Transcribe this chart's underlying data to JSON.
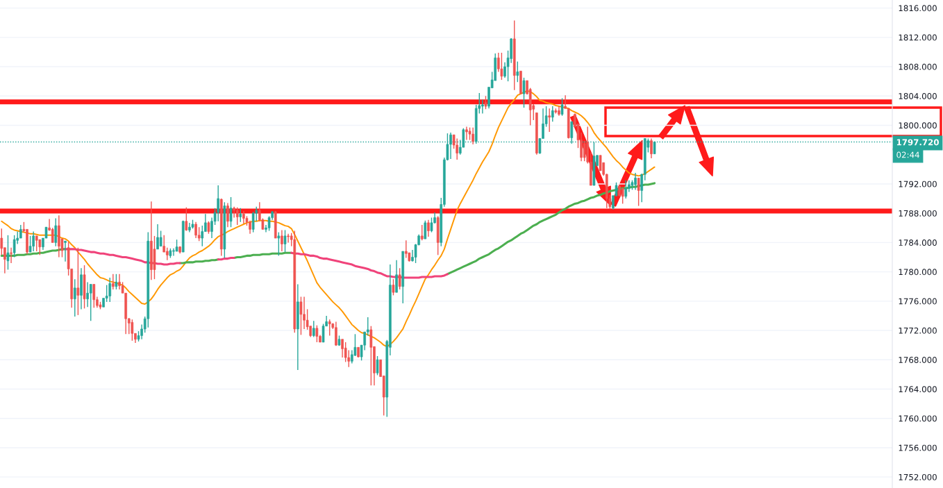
{
  "chart_data": {
    "type": "candlestick",
    "categories": [
      null,
      null,
      null,
      null,
      null,
      null,
      null,
      null,
      null,
      null,
      null,
      null,
      null,
      null,
      null,
      null,
      null,
      null,
      null,
      null,
      null,
      null,
      null,
      null,
      null,
      null,
      null,
      null,
      null,
      null,
      null,
      null,
      null,
      null,
      null,
      null,
      null,
      null,
      null,
      null,
      null,
      null,
      null,
      null,
      null,
      null,
      null,
      null,
      null,
      null,
      null,
      null,
      null,
      null,
      null,
      null,
      null,
      null,
      null,
      null,
      null,
      null,
      null,
      null,
      null,
      null,
      null,
      null,
      null,
      null,
      null,
      null,
      null,
      null,
      null,
      null,
      null,
      null,
      null,
      null,
      null,
      null,
      null,
      null,
      null,
      null,
      null,
      null,
      null,
      null,
      null,
      null,
      null,
      null,
      null,
      null,
      null,
      null,
      null,
      null,
      null,
      null,
      null,
      null,
      null,
      null,
      null,
      null,
      null,
      null,
      null,
      null,
      null,
      null,
      null,
      null,
      null,
      null,
      null,
      null,
      null,
      null,
      null,
      null,
      null,
      null,
      null,
      null,
      null,
      null,
      null,
      null,
      null,
      null,
      null,
      null,
      null,
      null,
      null,
      null,
      null,
      null,
      null,
      null,
      null,
      null,
      null,
      null,
      null,
      null,
      null,
      null,
      null,
      null,
      null,
      null,
      null,
      null,
      null,
      null,
      null,
      null,
      null,
      null,
      null,
      null,
      null,
      null,
      null,
      null,
      null,
      null,
      null,
      null,
      null,
      null,
      null,
      null,
      null,
      null,
      null,
      null,
      null,
      null,
      null,
      null,
      null,
      null,
      null,
      null,
      null,
      null,
      null,
      null,
      null,
      null,
      null,
      null,
      null,
      null,
      null,
      null,
      null,
      null,
      null,
      null
    ],
    "ohlc": [
      [
        1784.6,
        1785.9,
        1782.3,
        1783.2
      ],
      [
        1783.3,
        1783.3,
        1779.8,
        1781.7
      ],
      [
        1781.5,
        1785.0,
        1780.3,
        1782.6
      ],
      [
        1782.6,
        1783.3,
        1781.2,
        1782.5
      ],
      [
        1782.6,
        1785.0,
        1782.0,
        1784.4
      ],
      [
        1784.3,
        1785.5,
        1783.8,
        1784.6
      ],
      [
        1784.6,
        1786.4,
        1784.6,
        1785.8
      ],
      [
        1785.8,
        1786.8,
        1785.4,
        1785.6
      ],
      [
        1785.8,
        1785.8,
        1782.4,
        1782.7
      ],
      [
        1782.7,
        1784.9,
        1782.7,
        1783.5
      ],
      [
        1783.5,
        1785.5,
        1782.8,
        1784.9
      ],
      [
        1784.9,
        1784.9,
        1782.8,
        1784.3
      ],
      [
        1784.4,
        1784.4,
        1782.3,
        1783.4
      ],
      [
        1783.4,
        1784.6,
        1783.0,
        1784.6
      ],
      [
        1784.6,
        1786.1,
        1784.6,
        1786.1
      ],
      [
        1786.0,
        1787.2,
        1785.6,
        1785.7
      ],
      [
        1785.8,
        1786.0,
        1784.0,
        1784.0
      ],
      [
        1784.0,
        1787.3,
        1783.5,
        1786.3
      ],
      [
        1786.3,
        1787.7,
        1782.0,
        1783.5
      ],
      [
        1784.5,
        1784.5,
        1782.0,
        1782.9
      ],
      [
        1784.0,
        1784.2,
        1781.4,
        1784.2
      ],
      [
        1783.3,
        1784.1,
        1779.5,
        1780.4
      ],
      [
        1780.4,
        1780.4,
        1775.1,
        1776.3
      ],
      [
        1776.3,
        1779.0,
        1773.9,
        1777.8
      ],
      [
        1777.8,
        1783.3,
        1774.1,
        1776.8
      ],
      [
        1776.8,
        1780.5,
        1774.9,
        1779.6
      ],
      [
        1779.6,
        1780.9,
        1775.0,
        1776.3
      ],
      [
        1776.3,
        1778.6,
        1775.2,
        1777.1
      ],
      [
        1777.1,
        1778.3,
        1773.3,
        1778.3
      ],
      [
        1778.3,
        1778.3,
        1775.1,
        1776.2
      ],
      [
        1776.2,
        1776.6,
        1775.1,
        1775.4
      ],
      [
        1775.5,
        1775.9,
        1774.9,
        1775.2
      ],
      [
        1775.2,
        1776.4,
        1775.2,
        1776.4
      ],
      [
        1776.4,
        1778.2,
        1775.9,
        1776.7
      ],
      [
        1776.7,
        1779.2,
        1775.9,
        1778.4
      ],
      [
        1778.4,
        1779.7,
        1777.6,
        1778.0
      ],
      [
        1778.0,
        1779.7,
        1777.6,
        1778.6
      ],
      [
        1778.6,
        1779.7,
        1777.6,
        1778.1
      ],
      [
        1778.1,
        1778.6,
        1777.1,
        1777.1
      ],
      [
        1777.1,
        1777.1,
        1771.5,
        1773.6
      ],
      [
        1773.6,
        1773.7,
        1771.5,
        1773.0
      ],
      [
        1773.1,
        1773.5,
        1770.6,
        1771.6
      ],
      [
        1771.6,
        1771.6,
        1770.3,
        1770.8
      ],
      [
        1770.8,
        1771.9,
        1770.5,
        1771.3
      ],
      [
        1771.3,
        1772.8,
        1770.8,
        1772.2
      ],
      [
        1772.2,
        1773.9,
        1771.7,
        1773.6
      ],
      [
        1773.6,
        1785.4,
        1772.4,
        1784.2
      ],
      [
        1784.2,
        1789.6,
        1778.9,
        1780.3
      ],
      [
        1783.1,
        1784.9,
        1779.0,
        1780.3
      ],
      [
        1783.1,
        1786.5,
        1783.1,
        1784.7
      ],
      [
        1783.5,
        1785.6,
        1783.5,
        1784.7
      ],
      [
        1783.5,
        1785.0,
        1782.7,
        1782.7
      ],
      [
        1782.8,
        1783.3,
        1781.6,
        1782.3
      ],
      [
        1782.2,
        1783.2,
        1781.9,
        1782.9
      ],
      [
        1782.8,
        1783.2,
        1782.2,
        1782.9
      ],
      [
        1782.8,
        1784.4,
        1782.8,
        1783.4
      ],
      [
        1783.4,
        1783.5,
        1782.5,
        1782.7
      ],
      [
        1782.7,
        1787.0,
        1782.7,
        1786.9
      ],
      [
        1786.9,
        1788.8,
        1785.6,
        1785.7
      ],
      [
        1785.7,
        1786.7,
        1785.4,
        1786.1
      ],
      [
        1786.1,
        1787.1,
        1785.9,
        1786.5
      ],
      [
        1786.5,
        1786.8,
        1784.6,
        1785.0
      ],
      [
        1785.0,
        1786.1,
        1784.2,
        1784.6
      ],
      [
        1784.6,
        1786.3,
        1783.5,
        1785.5
      ],
      [
        1785.5,
        1787.9,
        1785.5,
        1786.7
      ],
      [
        1786.7,
        1786.9,
        1785.2,
        1785.5
      ],
      [
        1785.5,
        1787.4,
        1784.6,
        1786.9
      ],
      [
        1786.9,
        1788.7,
        1786.4,
        1788.1
      ],
      [
        1788.1,
        1791.8,
        1786.9,
        1790.0
      ],
      [
        1789.9,
        1790.0,
        1782.2,
        1783.1
      ],
      [
        1783.1,
        1789.5,
        1781.9,
        1789.0
      ],
      [
        1789.0,
        1789.4,
        1786.1,
        1786.9
      ],
      [
        1786.9,
        1790.2,
        1786.1,
        1788.7
      ],
      [
        1788.7,
        1788.9,
        1787.4,
        1788.4
      ],
      [
        1788.4,
        1788.8,
        1786.4,
        1787.5
      ],
      [
        1787.5,
        1788.7,
        1786.8,
        1787.9
      ],
      [
        1787.9,
        1788.3,
        1786.6,
        1787.3
      ],
      [
        1787.3,
        1787.6,
        1786.3,
        1786.8
      ],
      [
        1786.8,
        1787.0,
        1785.2,
        1785.8
      ],
      [
        1785.8,
        1788.2,
        1785.4,
        1788.0
      ],
      [
        1788.0,
        1788.9,
        1786.9,
        1788.4
      ],
      [
        1788.4,
        1789.5,
        1786.9,
        1787.1
      ],
      [
        1787.1,
        1787.3,
        1785.8,
        1785.8
      ],
      [
        1785.8,
        1786.4,
        1785.4,
        1786.0
      ],
      [
        1786.0,
        1787.6,
        1785.6,
        1787.4
      ],
      [
        1787.4,
        1788.3,
        1787.1,
        1788.2
      ],
      [
        1788.2,
        1788.3,
        1784.6,
        1784.6
      ],
      [
        1784.6,
        1785.4,
        1782.2,
        1784.9
      ],
      [
        1784.9,
        1785.7,
        1782.8,
        1783.8
      ],
      [
        1783.8,
        1785.7,
        1782.7,
        1784.9
      ],
      [
        1784.9,
        1785.2,
        1784.0,
        1784.8
      ],
      [
        1784.9,
        1785.3,
        1783.5,
        1784.4
      ],
      [
        1784.4,
        1785.6,
        1771.7,
        1772.2
      ],
      [
        1772.2,
        1778.3,
        1766.6,
        1775.9
      ],
      [
        1775.9,
        1776.6,
        1771.4,
        1774.2
      ],
      [
        1774.2,
        1776.6,
        1772.2,
        1773.4
      ],
      [
        1773.4,
        1774.9,
        1772.1,
        1772.5
      ],
      [
        1772.6,
        1772.6,
        1771.1,
        1771.3
      ],
      [
        1771.3,
        1773.3,
        1771.1,
        1772.3
      ],
      [
        1772.3,
        1772.7,
        1770.4,
        1771.2
      ],
      [
        1771.2,
        1771.4,
        1770.4,
        1770.4
      ],
      [
        1770.4,
        1772.9,
        1770.4,
        1772.6
      ],
      [
        1772.6,
        1774.0,
        1772.6,
        1773.2
      ],
      [
        1773.2,
        1773.5,
        1771.3,
        1772.9
      ],
      [
        1772.9,
        1773.0,
        1772.2,
        1772.4
      ],
      [
        1772.4,
        1773.2,
        1769.9,
        1770.0
      ],
      [
        1770.0,
        1771.3,
        1769.9,
        1770.8
      ],
      [
        1770.8,
        1770.8,
        1768.3,
        1769.5
      ],
      [
        1769.6,
        1770.4,
        1767.7,
        1768.3
      ],
      [
        1768.3,
        1769.3,
        1767.0,
        1767.8
      ],
      [
        1767.8,
        1769.3,
        1767.5,
        1768.7
      ],
      [
        1768.6,
        1771.5,
        1768.5,
        1769.7
      ],
      [
        1769.7,
        1769.7,
        1768.3,
        1768.4
      ],
      [
        1768.4,
        1770.0,
        1767.9,
        1770.0
      ],
      [
        1770.0,
        1771.8,
        1769.3,
        1771.8
      ],
      [
        1771.8,
        1773.8,
        1771.3,
        1772.1
      ],
      [
        1772.1,
        1772.6,
        1764.5,
        1769.7
      ],
      [
        1769.8,
        1769.8,
        1764.5,
        1766.2
      ],
      [
        1766.2,
        1768.5,
        1765.9,
        1768.0
      ],
      [
        1768.0,
        1768.0,
        1765.7,
        1765.7
      ],
      [
        1765.8,
        1765.8,
        1760.4,
        1762.9
      ],
      [
        1762.9,
        1770.7,
        1760.2,
        1770.5
      ],
      [
        1769.7,
        1781.0,
        1768.6,
        1778.2
      ],
      [
        1778.2,
        1779.0,
        1776.8,
        1777.2
      ],
      [
        1777.2,
        1781.6,
        1777.2,
        1779.6
      ],
      [
        1779.6,
        1780.5,
        1777.6,
        1778.0
      ],
      [
        1778.0,
        1782.8,
        1775.7,
        1782.8
      ],
      [
        1782.8,
        1784.3,
        1781.9,
        1782.5
      ],
      [
        1782.6,
        1782.6,
        1781.4,
        1781.5
      ],
      [
        1781.5,
        1783.0,
        1781.4,
        1782.0
      ],
      [
        1782.0,
        1783.8,
        1781.2,
        1783.7
      ],
      [
        1783.7,
        1785.1,
        1783.6,
        1784.9
      ],
      [
        1784.9,
        1786.4,
        1784.3,
        1784.5
      ],
      [
        1784.5,
        1787.0,
        1784.5,
        1786.7
      ],
      [
        1786.7,
        1787.1,
        1784.8,
        1785.6
      ],
      [
        1785.6,
        1787.4,
        1785.4,
        1786.7
      ],
      [
        1786.7,
        1788.1,
        1786.6,
        1787.4
      ],
      [
        1787.4,
        1787.6,
        1782.3,
        1784.0
      ],
      [
        1784.0,
        1790.1,
        1783.5,
        1789.2
      ],
      [
        1789.2,
        1795.6,
        1788.9,
        1795.3
      ],
      [
        1795.3,
        1798.9,
        1795.2,
        1797.4
      ],
      [
        1797.4,
        1799.0,
        1795.4,
        1798.7
      ],
      [
        1798.7,
        1798.7,
        1796.8,
        1797.3
      ],
      [
        1797.3,
        1798.2,
        1795.3,
        1796.2
      ],
      [
        1796.2,
        1798.0,
        1796.0,
        1797.0
      ],
      [
        1797.0,
        1799.6,
        1797.0,
        1799.4
      ],
      [
        1799.4,
        1799.8,
        1798.0,
        1799.1
      ],
      [
        1799.2,
        1799.7,
        1798.0,
        1798.8
      ],
      [
        1798.8,
        1799.7,
        1797.4,
        1797.8
      ],
      [
        1797.8,
        1802.8,
        1797.5,
        1802.3
      ],
      [
        1802.3,
        1804.4,
        1801.6,
        1802.7
      ],
      [
        1802.6,
        1803.5,
        1801.6,
        1802.8
      ],
      [
        1803.1,
        1804.0,
        1802.2,
        1802.6
      ],
      [
        1802.6,
        1805.2,
        1802.3,
        1805.2
      ],
      [
        1805.1,
        1807.3,
        1805.1,
        1806.2
      ],
      [
        1806.1,
        1809.8,
        1806.1,
        1809.2
      ],
      [
        1809.2,
        1809.9,
        1807.3,
        1807.7
      ],
      [
        1807.7,
        1809.9,
        1806.2,
        1806.7
      ],
      [
        1806.7,
        1808.6,
        1806.5,
        1808.0
      ],
      [
        1808.0,
        1810.2,
        1806.0,
        1809.2
      ],
      [
        1809.1,
        1811.9,
        1808.5,
        1811.8
      ],
      [
        1811.8,
        1814.3,
        1804.8,
        1806.8
      ],
      [
        1806.8,
        1808.7,
        1805.9,
        1807.3
      ],
      [
        1807.4,
        1807.4,
        1804.3,
        1804.3
      ],
      [
        1804.3,
        1806.5,
        1802.4,
        1806.1
      ],
      [
        1806.1,
        1806.1,
        1804.2,
        1804.3
      ],
      [
        1804.9,
        1805.1,
        1800.0,
        1802.1
      ],
      [
        1802.7,
        1802.9,
        1800.7,
        1802.2
      ],
      [
        1801.7,
        1801.7,
        1796.0,
        1796.2
      ],
      [
        1796.2,
        1798.2,
        1796.1,
        1798.2
      ],
      [
        1798.2,
        1802.3,
        1798.2,
        1800.2
      ],
      [
        1800.2,
        1802.6,
        1799.8,
        1801.3
      ],
      [
        1801.3,
        1802.3,
        1799.1,
        1801.1
      ],
      [
        1801.1,
        1802.6,
        1800.5,
        1802.0
      ],
      [
        1802.0,
        1802.3,
        1801.6,
        1801.8
      ],
      [
        1802.0,
        1802.6,
        1801.3,
        1801.5
      ],
      [
        1801.5,
        1803.7,
        1801.3,
        1802.8
      ],
      [
        1802.6,
        1804.1,
        1802.3,
        1802.3
      ],
      [
        1802.3,
        1802.3,
        1798.2,
        1798.3
      ],
      [
        1798.3,
        1800.5,
        1797.5,
        1800.5
      ],
      [
        1801.5,
        1801.6,
        1799.8,
        1799.8
      ],
      [
        1800.2,
        1800.2,
        1796.9,
        1798.0
      ],
      [
        1798.0,
        1799.0,
        1795.1,
        1795.6
      ],
      [
        1797.5,
        1797.9,
        1795.1,
        1795.6
      ],
      [
        1797.7,
        1799.8,
        1794.8,
        1795.0
      ],
      [
        1795.0,
        1796.3,
        1791.8,
        1791.8
      ],
      [
        1791.8,
        1797.7,
        1791.8,
        1795.8
      ],
      [
        1794.5,
        1795.9,
        1794.4,
        1795.9
      ],
      [
        1795.9,
        1795.9,
        1793.8,
        1793.8
      ],
      [
        1794.9,
        1794.9,
        1793.1,
        1793.3
      ],
      [
        1793.3,
        1793.4,
        1788.7,
        1790.0
      ],
      [
        1790.0,
        1790.5,
        1788.6,
        1788.9
      ],
      [
        1788.7,
        1790.4,
        1788.5,
        1790.4
      ],
      [
        1790.4,
        1792.2,
        1790.3,
        1791.8
      ],
      [
        1791.7,
        1791.9,
        1790.3,
        1790.4
      ],
      [
        1791.4,
        1791.4,
        1789.3,
        1790.3
      ],
      [
        1790.3,
        1792.5,
        1790.0,
        1791.4
      ],
      [
        1791.4,
        1792.5,
        1790.9,
        1791.9
      ],
      [
        1791.8,
        1792.5,
        1791.2,
        1792.2
      ],
      [
        1791.9,
        1793.5,
        1791.2,
        1792.8
      ],
      [
        1792.8,
        1792.8,
        1789.0,
        1791.1
      ],
      [
        1791.1,
        1793.4,
        1789.5,
        1793.3
      ],
      [
        1793.3,
        1798.2,
        1792.5,
        1798.2
      ],
      [
        1797.0,
        1798.2,
        1796.3,
        1797.9
      ],
      [
        1797.9,
        1798.2,
        1795.5,
        1796.1
      ],
      [
        1796.1,
        1797.8,
        1796.1,
        1797.72
      ]
    ],
    "series": [
      {
        "type": "line",
        "color": "#ff9800",
        "values": [
          1786.9,
          1786.6,
          1786.3,
          1785.9,
          1785.7,
          1785.6,
          1785.5,
          1785.4,
          1785.3,
          1785.2,
          1785.2,
          1785.1,
          1785.0,
          1785.0,
          1785.0,
          1785.0,
          1785.0,
          1785.0,
          1784.8,
          1784.6,
          1784.5,
          1784.2,
          1783.7,
          1783.3,
          1782.7,
          1782.2,
          1781.7,
          1781.1,
          1780.6,
          1780.1,
          1779.6,
          1779.2,
          1779.1,
          1778.9,
          1778.7,
          1778.6,
          1778.5,
          1778.3,
          1778.2,
          1777.8,
          1777.3,
          1776.9,
          1776.5,
          1776.1,
          1775.7,
          1775.6,
          1775.9,
          1776.3,
          1776.9,
          1777.6,
          1778.2,
          1778.7,
          1779.2,
          1779.6,
          1779.8,
          1780.1,
          1780.3,
          1780.8,
          1781.4,
          1781.9,
          1782.2,
          1782.4,
          1782.7,
          1782.9,
          1783.2,
          1783.5,
          1783.9,
          1784.4,
          1784.8,
          1785.0,
          1785.2,
          1785.5,
          1785.7,
          1785.9,
          1786.1,
          1786.3,
          1786.5,
          1786.7,
          1786.8,
          1786.9,
          1786.9,
          1787.0,
          1787.0,
          1787.0,
          1786.9,
          1786.9,
          1786.8,
          1786.7,
          1786.5,
          1786.3,
          1786.2,
          1785.9,
          1785.1,
          1784.2,
          1783.3,
          1782.4,
          1781.5,
          1780.5,
          1779.5,
          1778.5,
          1777.9,
          1777.4,
          1776.9,
          1776.4,
          1775.9,
          1775.5,
          1775.1,
          1774.6,
          1774.0,
          1773.4,
          1772.8,
          1772.4,
          1772.0,
          1771.7,
          1771.6,
          1771.4,
          1771.2,
          1771.0,
          1770.7,
          1770.4,
          1770.0,
          1769.8,
          1770.1,
          1770.5,
          1771.0,
          1771.6,
          1772.2,
          1773.2,
          1774.1,
          1775.1,
          1776.0,
          1777.0,
          1778.0,
          1779.0,
          1779.6,
          1780.3,
          1780.9,
          1781.6,
          1782.2,
          1783.1,
          1784.5,
          1785.8,
          1787.1,
          1788.4,
          1789.3,
          1790.1,
          1790.9,
          1791.7,
          1792.5,
          1793.4,
          1794.2,
          1795.0,
          1795.7,
          1796.4,
          1797.4,
          1798.6,
          1799.7,
          1800.6,
          1801.5,
          1802.4,
          1803.0,
          1803.5,
          1804.1,
          1804.3,
          1804.5,
          1804.7,
          1804.6,
          1804.3,
          1803.9,
          1803.4,
          1803.3,
          1803.1,
          1803.0,
          1802.9,
          1802.7,
          1802.6,
          1802.5,
          1802.4,
          1802.3,
          1802.0,
          1801.8,
          1801.6,
          1801.3,
          1800.9,
          1800.4,
          1799.8,
          1799.0,
          1798.4,
          1797.9,
          1797.4,
          1796.9,
          1796.3,
          1795.7,
          1795.2,
          1794.8,
          1794.3,
          1793.9,
          1793.5,
          1793.3,
          1793.2,
          1793.1,
          1793.2,
          1793.4,
          1793.7,
          1794.0,
          1794.3
        ]
      },
      {
        "type": "line",
        "color": "#4caf50",
        "values": [
          1782.2,
          1782.2,
          1782.2,
          1782.2,
          1782.2,
          1782.3,
          1782.3,
          1782.3,
          1782.4,
          1782.4,
          1782.5,
          1782.5,
          1782.6,
          1782.6,
          1782.7,
          1782.8,
          1782.9,
          1782.9,
          1783.0,
          1783.1,
          1783.1,
          null,
          null,
          null,
          null,
          null,
          null,
          null,
          null,
          null,
          null,
          null,
          null,
          null,
          null,
          null,
          null,
          null,
          null,
          null,
          null,
          null,
          null,
          null,
          null,
          null,
          null,
          null,
          null,
          null,
          null,
          null,
          null,
          null,
          null,
          null,
          1781.2,
          1781.2,
          1781.3,
          1781.3,
          1781.3,
          1781.4,
          1781.4,
          1781.4,
          1781.5,
          1781.5,
          1781.6,
          1781.6,
          1781.7,
          null,
          null,
          null,
          null,
          1781.9,
          1782.0,
          1782.0,
          1782.1,
          1782.2,
          1782.2,
          1782.3,
          1782.3,
          1782.3,
          1782.4,
          1782.4,
          1782.4,
          1782.5,
          1782.5,
          1782.5,
          1782.5,
          1782.6,
          1782.6,
          1782.6,
          null,
          null,
          null,
          null,
          null,
          null,
          null,
          null,
          null,
          null,
          null,
          null,
          null,
          null,
          null,
          null,
          null,
          null,
          null,
          null,
          null,
          null,
          null,
          null,
          null,
          null,
          null,
          null,
          null,
          null,
          null,
          null,
          null,
          null,
          null,
          null,
          null,
          null,
          null,
          null,
          null,
          null,
          null,
          null,
          null,
          null,
          null,
          null,
          1779.7,
          1779.9,
          1780.1,
          1780.3,
          1780.5,
          1780.7,
          1780.9,
          1781.1,
          1781.3,
          1781.5,
          1781.8,
          1782.0,
          1782.2,
          1782.4,
          1782.7,
          1783.0,
          1783.2,
          1783.5,
          1783.8,
          1784.1,
          1784.3,
          1784.6,
          1784.9,
          1785.2,
          1785.4,
          1785.7,
          1786.0,
          1786.3,
          1786.5,
          1786.8,
          1787.0,
          1787.2,
          1787.4,
          1787.6,
          1787.8,
          1788.1,
          1788.4,
          1788.6,
          1788.9,
          1789.1,
          1789.3,
          1789.4,
          1789.6,
          1789.7,
          1789.9,
          1790.1,
          1790.2,
          1790.4,
          1790.5,
          1790.7,
          1790.8,
          1791.0,
          1791.1,
          1791.2,
          1791.3,
          1791.4,
          1791.4,
          1791.5,
          1791.6,
          1791.6,
          1791.7,
          1791.8,
          1791.9,
          1791.9,
          1792.0,
          1792.1
        ]
      },
      {
        "type": "line",
        "color": "#f0437a",
        "values": [
          null,
          null,
          null,
          null,
          null,
          null,
          null,
          null,
          null,
          null,
          null,
          null,
          null,
          null,
          null,
          null,
          null,
          null,
          null,
          null,
          1783.1,
          1783.1,
          1783.1,
          1783.1,
          1783.0,
          1783.0,
          1782.9,
          1782.8,
          1782.7,
          1782.7,
          1782.6,
          1782.5,
          1782.5,
          1782.4,
          1782.3,
          1782.3,
          1782.2,
          1782.1,
          1782.0,
          1782.0,
          1781.9,
          1781.8,
          1781.7,
          1781.6,
          1781.5,
          1781.3,
          1781.3,
          1781.2,
          1781.2,
          1781.1,
          1781.1,
          1781.0,
          1781.0,
          1781.1,
          1781.1,
          1781.2,
          1781.2,
          null,
          null,
          null,
          null,
          null,
          null,
          null,
          null,
          null,
          null,
          null,
          1781.7,
          1781.7,
          1781.8,
          1781.8,
          1781.9,
          1781.9,
          null,
          null,
          null,
          null,
          null,
          null,
          null,
          null,
          null,
          null,
          null,
          null,
          null,
          null,
          null,
          null,
          null,
          1782.6,
          1782.5,
          1782.5,
          1782.4,
          1782.4,
          1782.3,
          1782.2,
          1782.2,
          1782.1,
          1781.9,
          1781.8,
          1781.8,
          1781.7,
          1781.6,
          1781.5,
          1781.4,
          1781.3,
          1781.2,
          1781.1,
          1781.0,
          1780.8,
          1780.7,
          1780.6,
          1780.5,
          1780.4,
          1780.2,
          1780.1,
          1779.9,
          1779.8,
          1779.6,
          1779.4,
          1779.4,
          1779.3,
          1779.3,
          1779.3,
          1779.2,
          1779.2,
          1779.2,
          1779.2,
          1779.2,
          1779.2,
          1779.3,
          1779.3,
          1779.3,
          1779.3,
          1779.4,
          1779.4,
          1779.4,
          1779.5,
          1779.7,
          null,
          null,
          null,
          null,
          null,
          null,
          null,
          null,
          null,
          null,
          null,
          null,
          null,
          null,
          null,
          null,
          null,
          null,
          null,
          null,
          null,
          null,
          null,
          null,
          null,
          null,
          null,
          null,
          null,
          null,
          null,
          null,
          null,
          null,
          null,
          null,
          null,
          null,
          null,
          null,
          null,
          null,
          null,
          null,
          null,
          null,
          null,
          null,
          null,
          null,
          null,
          null,
          null,
          null,
          null,
          null,
          null,
          null,
          null,
          null,
          null,
          null,
          null,
          null,
          null
        ]
      }
    ],
    "ylim": [
      1750.5,
      1817.1
    ],
    "yticks": [
      {
        "value": 1752,
        "label": "1752.000"
      },
      {
        "value": 1756,
        "label": "1756.000"
      },
      {
        "value": 1760,
        "label": "1760.000"
      },
      {
        "value": 1764,
        "label": "1764.000"
      },
      {
        "value": 1768,
        "label": "1768.000"
      },
      {
        "value": 1772,
        "label": "1772.000"
      },
      {
        "value": 1776,
        "label": "1776.000"
      },
      {
        "value": 1780,
        "label": "1780.000"
      },
      {
        "value": 1784,
        "label": "1784.000"
      },
      {
        "value": 1788,
        "label": "1788.000"
      },
      {
        "value": 1792,
        "label": "1792.000"
      },
      {
        "value": 1800,
        "label": "1800.000"
      },
      {
        "value": 1804,
        "label": "1804.000"
      },
      {
        "value": 1808,
        "label": "1808.000"
      },
      {
        "value": 1812,
        "label": "1812.000"
      },
      {
        "value": 1816,
        "label": "1816.000"
      }
    ],
    "ref_lines": [
      {
        "axis": "y",
        "value": 1803.2,
        "color": "#ff1a1a",
        "line_style": "solid"
      },
      {
        "axis": "y",
        "value": 1788.3,
        "color": "#ff1a1a",
        "line_style": "solid"
      },
      {
        "axis": "y",
        "value": 1797.72,
        "label": "1797.720",
        "color": "#26a69a",
        "line_style": "dotted"
      }
    ],
    "annotations": [
      "02:44"
    ],
    "grid": "y",
    "tick_labels": "y"
  }
}
